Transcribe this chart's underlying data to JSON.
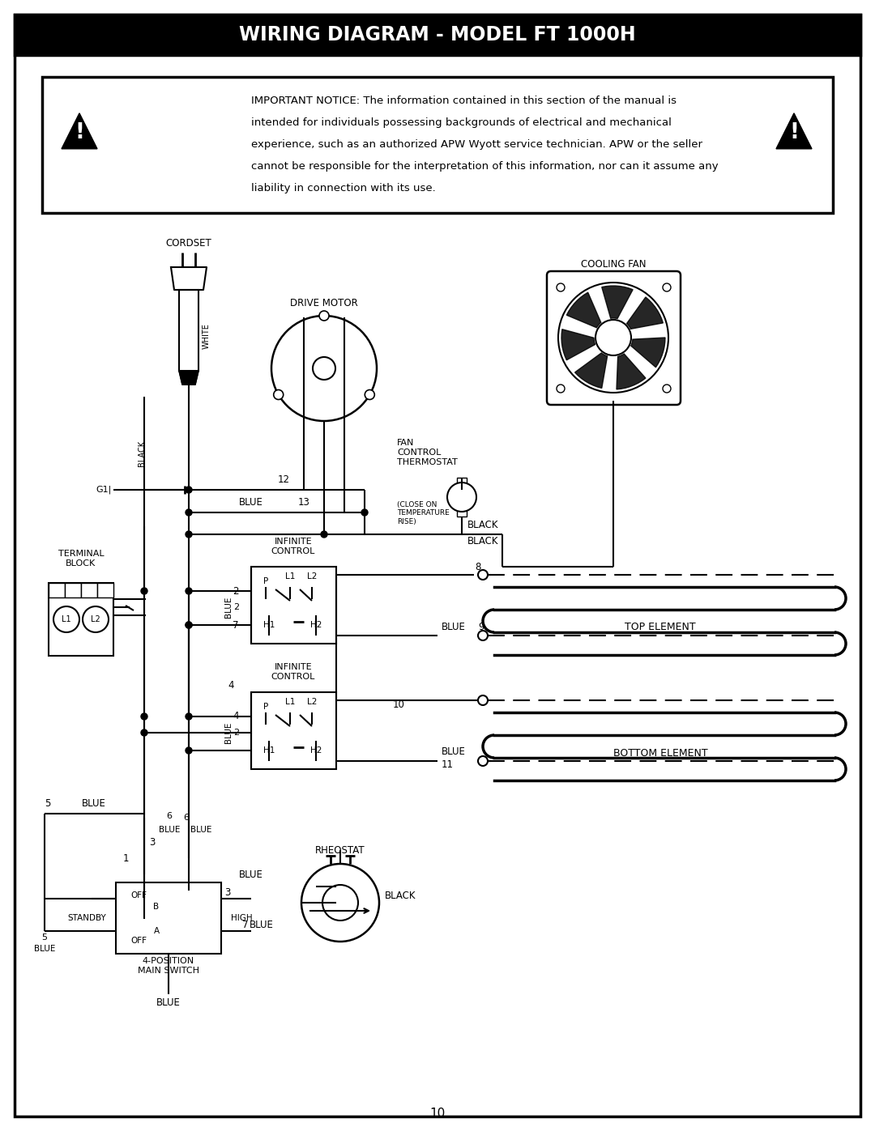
{
  "title": "WIRING DIAGRAM - MODEL FT 1000H",
  "title_bg": "#000000",
  "title_color": "#ffffff",
  "page_bg": "#ffffff",
  "notice_text_line1": "IMPORTANT NOTICE: The information contained in this section of the manual is",
  "notice_text_line2": "intended for individuals possessing backgrounds of electrical and mechanical",
  "notice_text_line3": "experience, such as an authorized APW Wyott service technician. APW or the seller",
  "notice_text_line4": "cannot be responsible for the interpretation of this information, nor can it assume any",
  "notice_text_line5": "liability in connection with its use.",
  "page_number": "10",
  "lbl_cordset": "CORDSET",
  "lbl_drive_motor": "DRIVE MOTOR",
  "lbl_cooling_fan": "COOLING FAN",
  "lbl_fan_control": "FAN\nCONTROL\nTHERMOSTAT",
  "lbl_fan_control_note": "(CLOSE ON\nTEMPERATURE\nRISE)",
  "lbl_terminal_block": "TERMINAL\nBLOCK",
  "lbl_infinite1": "INFINITE\nCONTROL",
  "lbl_infinite2": "INFINITE\nCONTROL",
  "lbl_top_element": "TOP ELEMENT",
  "lbl_bottom_element": "BOTTOM ELEMENT",
  "lbl_rheostat": "RHEOSTAT",
  "lbl_main_switch": "4-POSITION\nMAIN SWITCH",
  "lbl_standby": "STANDBY",
  "lbl_high": "HIGH",
  "lbl_black": "BLACK",
  "lbl_blue": "BLUE",
  "lbl_white": "WHITE"
}
